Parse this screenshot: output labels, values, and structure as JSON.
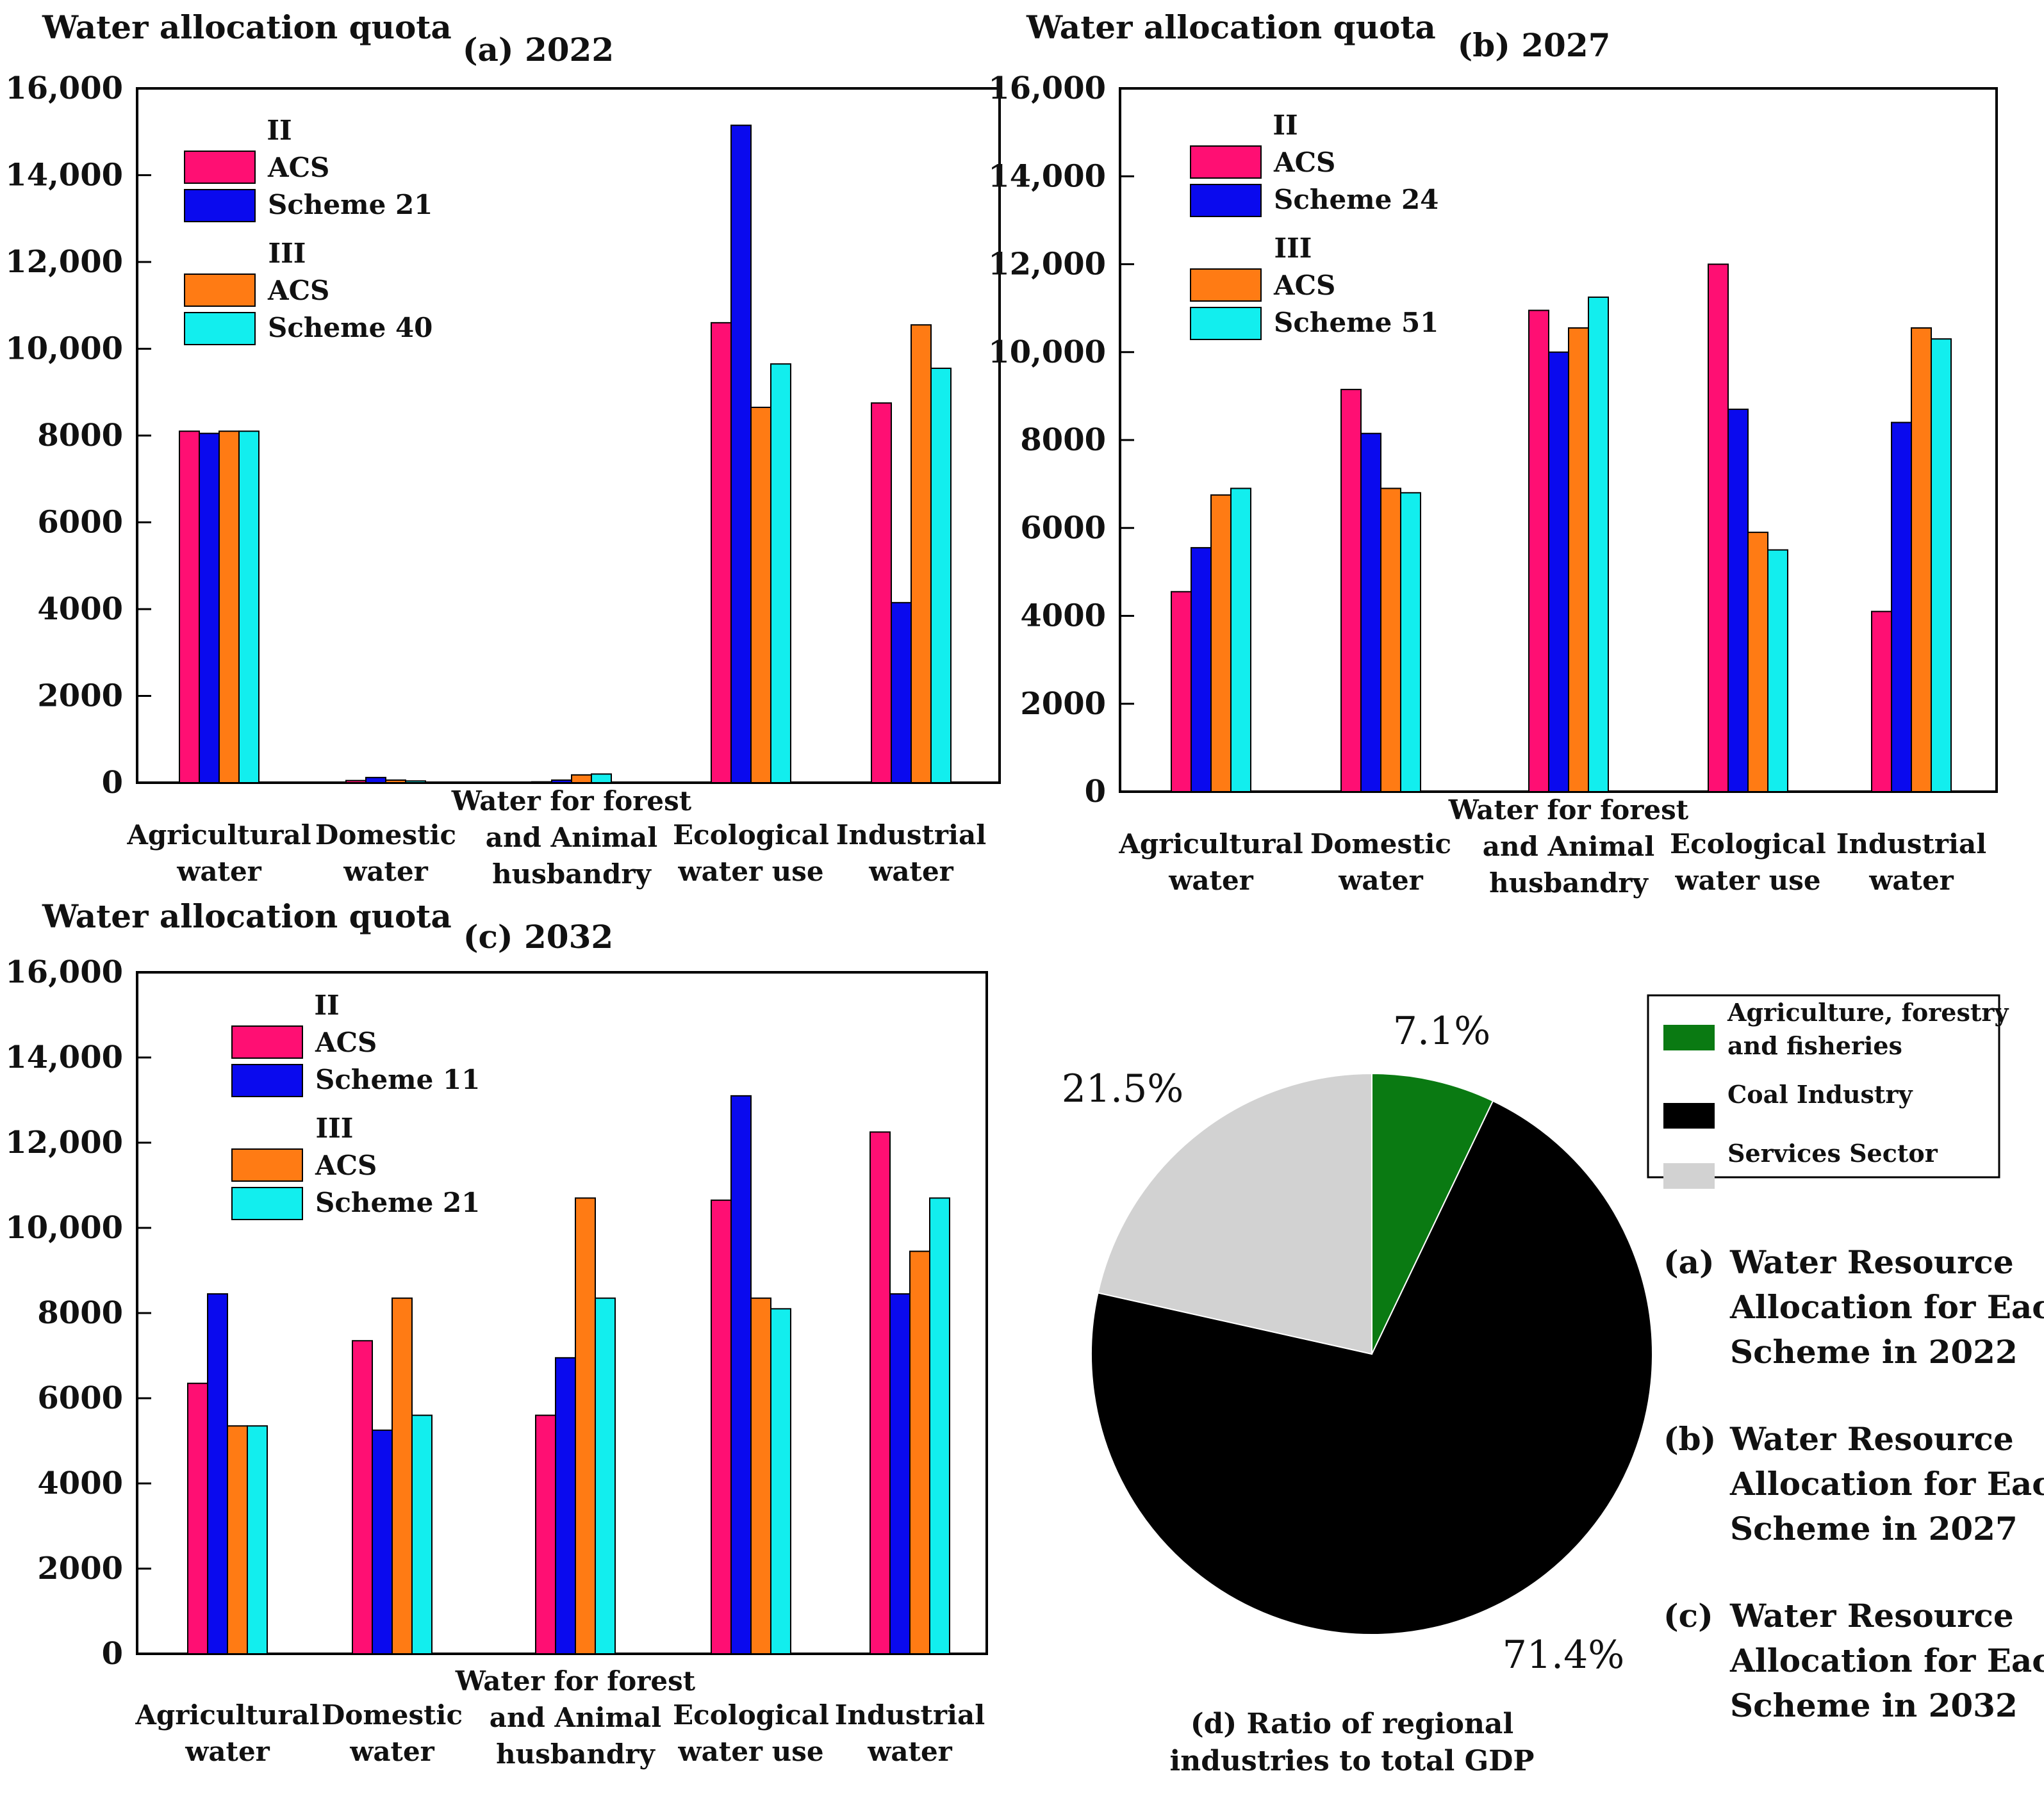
{
  "colors": {
    "ii_acs": "#ff0f73",
    "ii_scheme": "#0a0aee",
    "iii_acs": "#ff7b14",
    "iii_scheme": "#12eeee",
    "pie_agri": "#0a7a12",
    "pie_coal": "#000000",
    "pie_services": "#d2d2d2"
  },
  "chart_data": [
    {
      "type": "bar",
      "ylabel": "Water allocation quota",
      "title": "(a) 2022",
      "ylim": [
        0,
        16000
      ],
      "yticks": [
        "0",
        "2000",
        "4000",
        "6000",
        "8000",
        "10,000",
        "12,000",
        "14,000",
        "16,000"
      ],
      "categories": [
        [
          "Agricultural",
          "water"
        ],
        [
          "Domestic",
          "water"
        ],
        [
          "Water for forest",
          "and Animal",
          "husbandry"
        ],
        [
          "Ecological",
          "water use"
        ],
        [
          "Industrial",
          "water"
        ]
      ],
      "legend": {
        "group1": "II",
        "acs1": "ACS",
        "scheme1": "Scheme 21",
        "group2": "III",
        "acs2": "ACS",
        "scheme2": "Scheme 40"
      },
      "series": [
        {
          "name": "II ACS",
          "values": [
            8100,
            50,
            20,
            10600,
            8750
          ]
        },
        {
          "name": "II Scheme 21",
          "values": [
            8050,
            120,
            60,
            15150,
            4150
          ]
        },
        {
          "name": "III ACS",
          "values": [
            8100,
            60,
            180,
            8650,
            10550
          ]
        },
        {
          "name": "III Scheme 40",
          "values": [
            8100,
            40,
            200,
            9650,
            9550
          ]
        }
      ]
    },
    {
      "type": "bar",
      "ylabel": "Water allocation quota",
      "title": "(b) 2027",
      "ylim": [
        0,
        16000
      ],
      "yticks": [
        "0",
        "2000",
        "4000",
        "6000",
        "8000",
        "10,000",
        "12,000",
        "14,000",
        "16,000"
      ],
      "categories": [
        [
          "Agricultural",
          "water"
        ],
        [
          "Domestic",
          "water"
        ],
        [
          "Water for forest",
          "and Animal",
          "husbandry"
        ],
        [
          "Ecological",
          "water use"
        ],
        [
          "Industrial",
          "water"
        ]
      ],
      "legend": {
        "group1": "II",
        "acs1": "ACS",
        "scheme1": "Scheme 24",
        "group2": "III",
        "acs2": "ACS",
        "scheme2": "Scheme 51"
      },
      "series": [
        {
          "name": "II ACS",
          "values": [
            4550,
            9150,
            10950,
            12000,
            4100
          ]
        },
        {
          "name": "II Scheme 24",
          "values": [
            5550,
            8150,
            10000,
            8700,
            8400
          ]
        },
        {
          "name": "III ACS",
          "values": [
            6750,
            6900,
            10550,
            5900,
            10550
          ]
        },
        {
          "name": "III Scheme 51",
          "values": [
            6900,
            6800,
            11250,
            5500,
            10300
          ]
        }
      ]
    },
    {
      "type": "bar",
      "ylabel": "Water allocation quota",
      "title": "(c)  2032",
      "ylim": [
        0,
        16000
      ],
      "yticks": [
        "0",
        "2000",
        "4000",
        "6000",
        "8000",
        "10,000",
        "12,000",
        "14,000",
        "16,000"
      ],
      "categories": [
        [
          "Agricultural",
          "water"
        ],
        [
          "Domestic",
          "water"
        ],
        [
          "Water for forest",
          "and Animal",
          "husbandry"
        ],
        [
          "Ecological",
          "water use"
        ],
        [
          "Industrial",
          "water"
        ]
      ],
      "legend": {
        "group1": "II",
        "acs1": "ACS",
        "scheme1": "Scheme 11",
        "group2": "III",
        "acs2": "ACS",
        "scheme2": "Scheme 21"
      },
      "series": [
        {
          "name": "II ACS",
          "values": [
            6350,
            7350,
            5600,
            10650,
            12250
          ]
        },
        {
          "name": "II Scheme 11",
          "values": [
            8450,
            5250,
            6950,
            13100,
            8450
          ]
        },
        {
          "name": "III ACS",
          "values": [
            5350,
            8350,
            10700,
            8350,
            9450
          ]
        },
        {
          "name": "III Scheme 21",
          "values": [
            5350,
            5600,
            8350,
            8100,
            10700
          ]
        }
      ]
    },
    {
      "type": "pie",
      "title": [
        "(d) Ratio of regional",
        "industries to total GDP"
      ],
      "slices": [
        {
          "name": "Agriculture, forestry and fisheries",
          "legend": [
            "Agriculture, forestry",
            "and fisheries"
          ],
          "value": 7.1,
          "label": "7.1%"
        },
        {
          "name": "Coal Industry",
          "legend": [
            "Coal Industry"
          ],
          "value": 71.4,
          "label": "71.4%"
        },
        {
          "name": "Services Sector",
          "legend": [
            "Services Sector"
          ],
          "value": 21.5,
          "label": "21.5%"
        }
      ]
    }
  ],
  "captions": [
    {
      "marker": "(a)",
      "lines": [
        "Water Resource",
        "Allocation for Each",
        "Scheme in 2022"
      ]
    },
    {
      "marker": "(b)",
      "lines": [
        "Water Resource",
        "Allocation for Each",
        "Scheme in 2027"
      ]
    },
    {
      "marker": "(c)",
      "lines": [
        "Water Resource",
        "Allocation for Each",
        "Scheme in 2032"
      ]
    }
  ]
}
